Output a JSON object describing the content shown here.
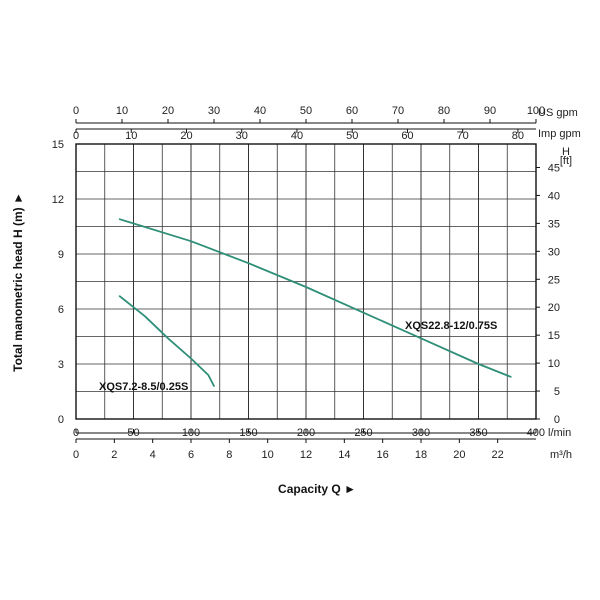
{
  "chart_data": {
    "type": "line",
    "axes": {
      "top_us_gpm": {
        "unit": "US gpm",
        "ticks": [
          "0",
          "10",
          "20",
          "30",
          "40",
          "50",
          "60",
          "70",
          "80",
          "90",
          "100"
        ],
        "range": [
          0,
          100
        ]
      },
      "top_imp_gpm": {
        "unit": "Imp gpm",
        "ticks": [
          "0",
          "10",
          "20",
          "30",
          "40",
          "50",
          "60",
          "70",
          "80"
        ],
        "range": [
          0,
          83.27
        ]
      },
      "bottom_lmin": {
        "unit": "l/min",
        "ticks": [
          "0",
          "50",
          "100",
          "150",
          "200",
          "250",
          "300",
          "350",
          "400"
        ],
        "range": [
          0,
          400
        ]
      },
      "bottom_m3h": {
        "unit": "m³/h",
        "ticks": [
          "0",
          "2",
          "4",
          "6",
          "8",
          "10",
          "12",
          "14",
          "16",
          "18",
          "20",
          "22"
        ],
        "range": [
          0,
          24
        ]
      },
      "left_m": {
        "ticks": [
          "0",
          "3",
          "6",
          "9",
          "12",
          "15"
        ],
        "range": [
          0,
          15
        ]
      },
      "right_ft": {
        "unit": "H\n[ft]",
        "ticks": [
          "0",
          "5",
          "10",
          "15",
          "20",
          "25",
          "30",
          "35",
          "40",
          "45"
        ],
        "range": [
          0,
          49.2
        ]
      }
    },
    "xlabel": "Capacity Q ►",
    "ylabel": "Total manometric head H (m) ►",
    "grid": true,
    "series": [
      {
        "name": "XQS7.2-8.5/0.25S",
        "x": [
          38,
          60,
          80,
          100,
          115,
          120
        ],
        "y": [
          6.7,
          5.6,
          4.4,
          3.3,
          2.4,
          1.8
        ],
        "color": "#2e8f78"
      },
      {
        "name": "XQS22.8-12/0.75S",
        "x": [
          38,
          100,
          150,
          200,
          250,
          300,
          350,
          378
        ],
        "y": [
          10.9,
          9.7,
          8.5,
          7.2,
          5.8,
          4.4,
          3.0,
          2.3
        ],
        "color": "#2e8f78"
      }
    ]
  }
}
